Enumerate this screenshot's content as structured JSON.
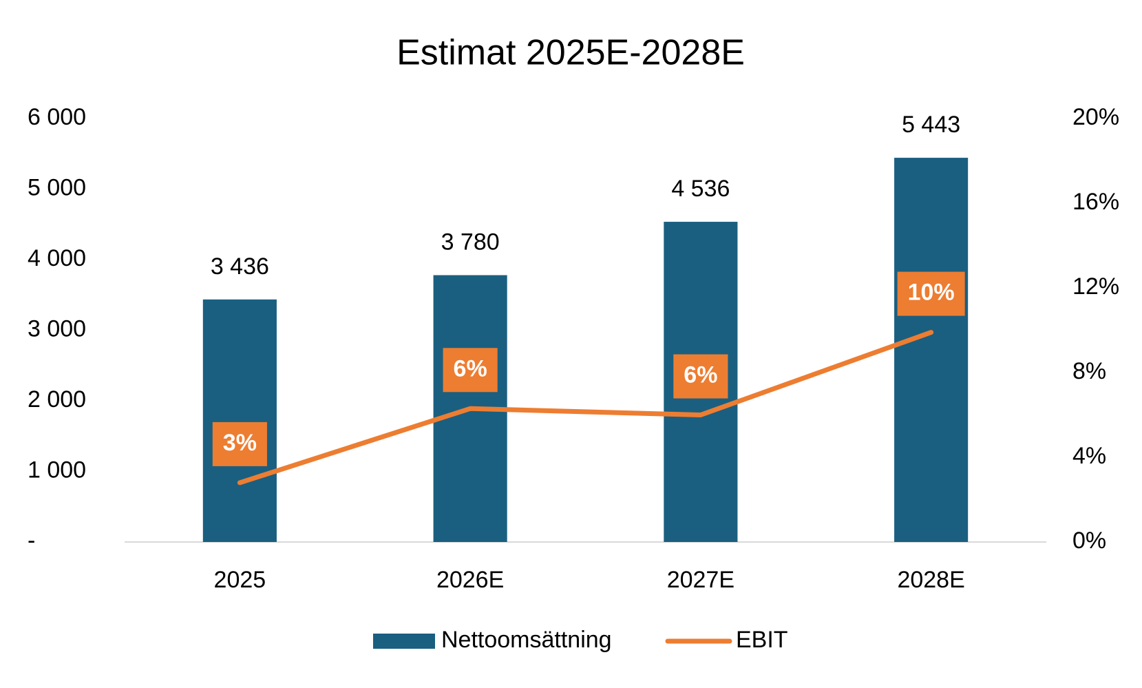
{
  "chart_data": {
    "type": "bar-line",
    "title": "Estimat 2025E-2028E",
    "categories": [
      "2025",
      "2026E",
      "2027E",
      "2028E"
    ],
    "series": [
      {
        "name": "Nettoomsättning",
        "type": "bar",
        "color": "#1a5f80",
        "values": [
          3436,
          3780,
          4536,
          5443
        ],
        "value_labels": [
          "3 436",
          "3 780",
          "4 536",
          "5 443"
        ]
      },
      {
        "name": "EBIT",
        "type": "line",
        "axis": "y2",
        "color": "#ed7d31",
        "values": [
          2.8,
          6.3,
          6.0,
          9.9
        ],
        "value_labels": [
          "3%",
          "6%",
          "6%",
          "10%"
        ]
      }
    ],
    "ylim": [
      0,
      6000
    ],
    "yticks": [
      {
        "value": 0,
        "label": "-"
      },
      {
        "value": 1000,
        "label": "1 000"
      },
      {
        "value": 2000,
        "label": "2 000"
      },
      {
        "value": 3000,
        "label": "3 000"
      },
      {
        "value": 4000,
        "label": "4 000"
      },
      {
        "value": 5000,
        "label": "5 000"
      },
      {
        "value": 6000,
        "label": "6 000"
      }
    ],
    "y2lim": [
      0,
      20
    ],
    "y2ticks": [
      {
        "value": 0,
        "label": "0%"
      },
      {
        "value": 4,
        "label": "4%"
      },
      {
        "value": 8,
        "label": "8%"
      },
      {
        "value": 12,
        "label": "12%"
      },
      {
        "value": 16,
        "label": "16%"
      },
      {
        "value": 20,
        "label": "20%"
      }
    ],
    "legend": "bottom"
  }
}
